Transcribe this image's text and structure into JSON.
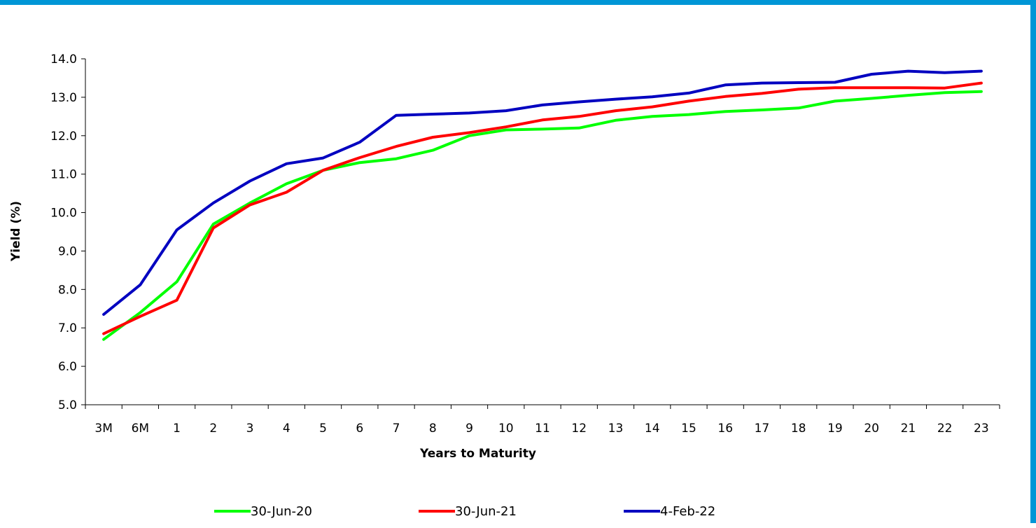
{
  "chart_data": {
    "type": "line",
    "title": "",
    "xlabel": "Years to Maturity",
    "ylabel": "Yield (%)",
    "ylim": [
      5.0,
      14.0
    ],
    "y_ticks": [
      "5.0",
      "6.0",
      "7.0",
      "8.0",
      "9.0",
      "10.0",
      "11.0",
      "12.0",
      "13.0",
      "14.0"
    ],
    "categories": [
      "3M",
      "6M",
      "1",
      "2",
      "3",
      "4",
      "5",
      "6",
      "7",
      "8",
      "9",
      "10",
      "11",
      "12",
      "13",
      "14",
      "15",
      "16",
      "17",
      "18",
      "19",
      "20",
      "21",
      "22",
      "23"
    ],
    "grid": false,
    "legend_position": "bottom",
    "series": [
      {
        "name": "30-Jun-20",
        "color": "#00ff00",
        "values": [
          6.7,
          7.4,
          8.2,
          9.7,
          10.25,
          10.75,
          11.1,
          11.3,
          11.4,
          11.62,
          12.0,
          12.15,
          12.17,
          12.2,
          12.4,
          12.5,
          12.55,
          12.63,
          12.67,
          12.72,
          12.9,
          12.97,
          13.05,
          13.12,
          13.15
        ]
      },
      {
        "name": "30-Jun-21",
        "color": "#ff0000",
        "values": [
          6.85,
          7.3,
          7.72,
          9.6,
          10.2,
          10.53,
          11.1,
          11.43,
          11.72,
          11.96,
          12.08,
          12.23,
          12.41,
          12.5,
          12.65,
          12.75,
          12.9,
          13.02,
          13.1,
          13.21,
          13.25,
          13.25,
          13.25,
          13.24,
          13.37
        ]
      },
      {
        "name": "4-Feb-22",
        "color": "#0000c0",
        "values": [
          7.35,
          8.12,
          9.55,
          10.25,
          10.82,
          11.27,
          11.42,
          11.83,
          12.53,
          12.56,
          12.59,
          12.65,
          12.8,
          12.88,
          12.95,
          13.01,
          13.11,
          13.32,
          13.37,
          13.38,
          13.39,
          13.6,
          13.68,
          13.64,
          13.68
        ]
      }
    ]
  }
}
